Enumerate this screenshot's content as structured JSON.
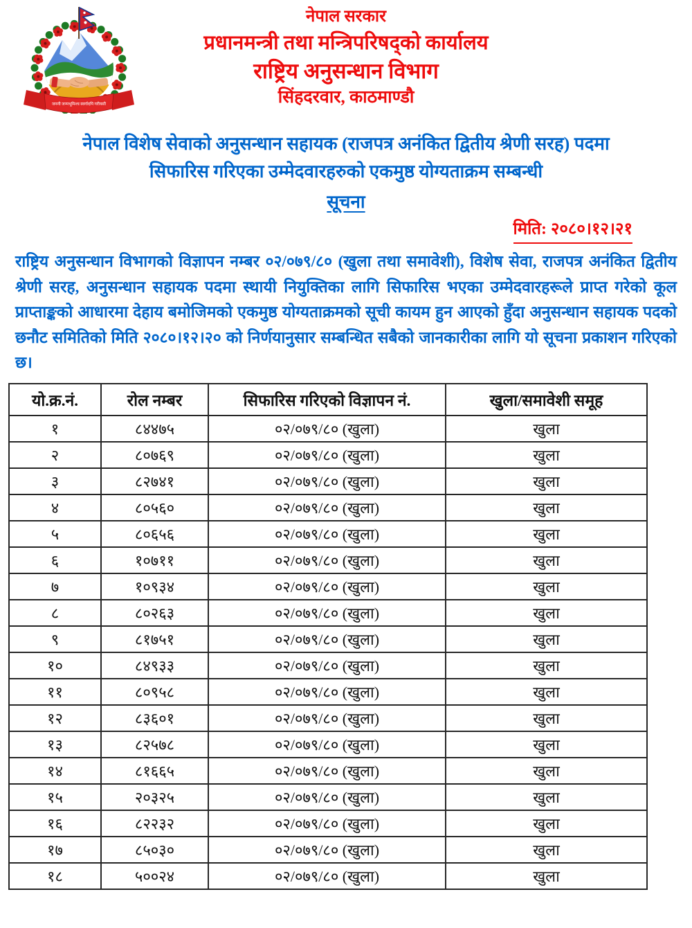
{
  "colors": {
    "red": "#ee0c0c",
    "blue": "#0066cc",
    "ink": "#111111",
    "tableborder": "#262626"
  },
  "header": {
    "line1": "नेपाल सरकार",
    "line2": "प्रधानमन्त्री तथा मन्त्रिपरिषद्को कार्यालय",
    "line3": "राष्ट्रिय अनुसन्धान विभाग",
    "line4": "सिंहदरवार, काठमाण्डौ",
    "emblem_name": "nepal-government-emblem",
    "emblem_motto": "जननी जन्मभूमिश्च स्वर्गादपि गरीयसी"
  },
  "notice": {
    "title_line1": "नेपाल विशेष सेवाको अनुसन्धान सहायक (राजपत्र अनंकित द्वितीय श्रेणी सरह) पदमा",
    "title_line2": "सिफारिस गरिएका उम्मेदवारहरुको एकमुष्ठ योग्यताक्रम सम्बन्धी",
    "title_line3": "सूचना",
    "date": "मिति: २०८०।१२।२१",
    "body": "राष्ट्रिय अनुसन्धान विभागको विज्ञापन नम्बर ०२/०७९/८० (खुला तथा समावेशी), विशेष सेवा, राजपत्र अनंकित द्वितीय श्रेणी सरह, अनुसन्धान सहायक पदमा स्थायी नियुक्तिका लागि सिफारिस भएका उम्मेदवारहरूले प्राप्त गरेको कूल प्राप्ताङ्कको आधारमा देहाय बमोजिमको एकमुष्ठ योग्यताक्रमको सूची कायम हुन आएको हुँदा अनुसन्धान सहायक पदको छनौट समितिको मिति २०८०।१२।२० को निर्णयानुसार सम्बन्धित सबैको जानकारीका लागि यो सूचना प्रकाशन गरिएको छ।"
  },
  "table": {
    "headers": [
      "यो.क्र.नं.",
      "रोल नम्बर",
      "सिफारिस गरिएको विज्ञापन नं.",
      "खुला/समावेशी समूह"
    ],
    "rows": [
      {
        "sn": "१",
        "roll": "८४४७५",
        "advert": "०२/०७९/८० (खुला)",
        "group": "खुला"
      },
      {
        "sn": "२",
        "roll": "८०७६९",
        "advert": "०२/०७९/८० (खुला)",
        "group": "खुला"
      },
      {
        "sn": "३",
        "roll": "८२७४१",
        "advert": "०२/०७९/८० (खुला)",
        "group": "खुला"
      },
      {
        "sn": "४",
        "roll": "८०५६०",
        "advert": "०२/०७९/८० (खुला)",
        "group": "खुला"
      },
      {
        "sn": "५",
        "roll": "८०६५६",
        "advert": "०२/०७९/८० (खुला)",
        "group": "खुला"
      },
      {
        "sn": "६",
        "roll": "१०७११",
        "advert": "०२/०७९/८० (खुला)",
        "group": "खुला"
      },
      {
        "sn": "७",
        "roll": "१०९३४",
        "advert": "०२/०७९/८० (खुला)",
        "group": "खुला"
      },
      {
        "sn": "८",
        "roll": "८०२६३",
        "advert": "०२/०७९/८० (खुला)",
        "group": "खुला"
      },
      {
        "sn": "९",
        "roll": "८१७५१",
        "advert": "०२/०७९/८० (खुला)",
        "group": "खुला"
      },
      {
        "sn": "१०",
        "roll": "८४९३३",
        "advert": "०२/०७९/८० (खुला)",
        "group": "खुला"
      },
      {
        "sn": "११",
        "roll": "८०९५८",
        "advert": "०२/०७९/८० (खुला)",
        "group": "खुला"
      },
      {
        "sn": "१२",
        "roll": "८३६०१",
        "advert": "०२/०७९/८० (खुला)",
        "group": "खुला"
      },
      {
        "sn": "१३",
        "roll": "८२५७८",
        "advert": "०२/०७९/८० (खुला)",
        "group": "खुला"
      },
      {
        "sn": "१४",
        "roll": "८१६६५",
        "advert": "०२/०७९/८० (खुला)",
        "group": "खुला"
      },
      {
        "sn": "१५",
        "roll": "२०३२५",
        "advert": "०२/०७९/८० (खुला)",
        "group": "खुला"
      },
      {
        "sn": "१६",
        "roll": "८२२३२",
        "advert": "०२/०७९/८० (खुला)",
        "group": "खुला"
      },
      {
        "sn": "१७",
        "roll": "८५०३०",
        "advert": "०२/०७९/८० (खुला)",
        "group": "खुला"
      },
      {
        "sn": "१८",
        "roll": "५००२४",
        "advert": "०२/०७९/८० (खुला)",
        "group": "खुला"
      }
    ]
  }
}
